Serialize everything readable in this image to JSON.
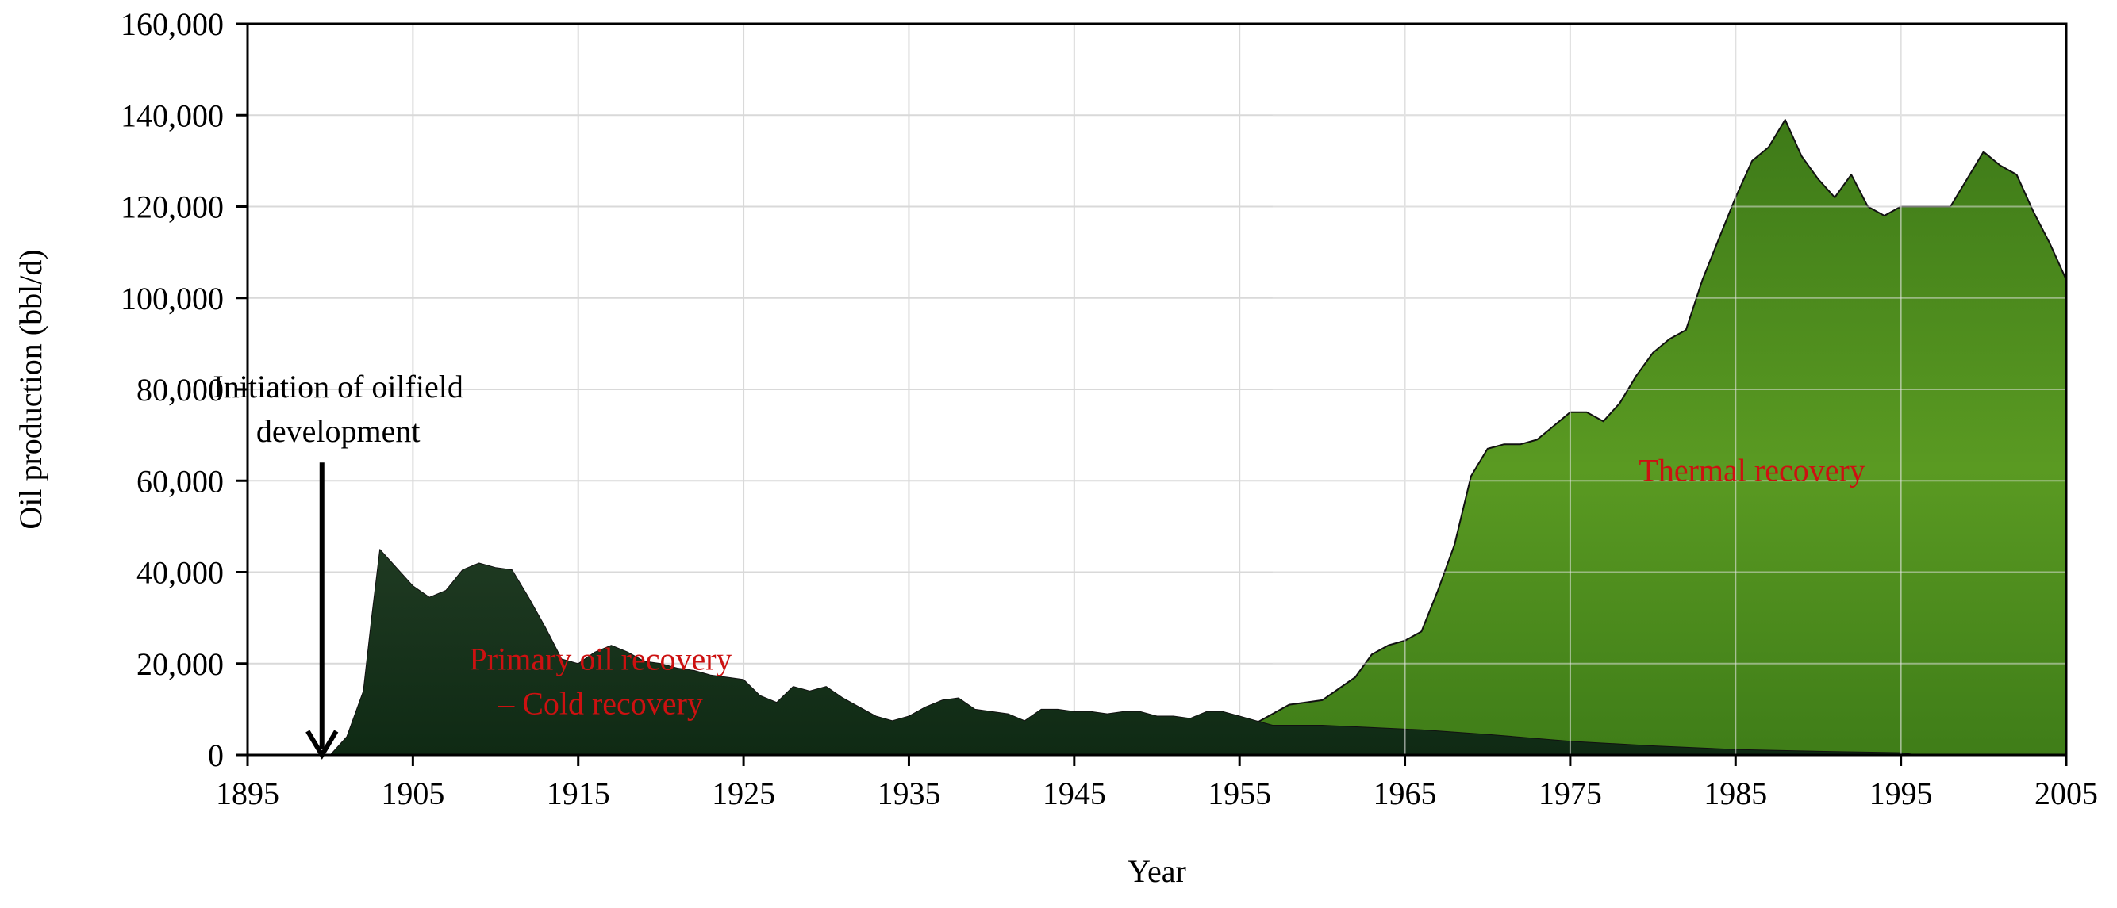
{
  "chart_data": {
    "type": "area",
    "title": "",
    "xlabel": "Year",
    "ylabel": "Oil production (bbl/d)",
    "xlim": [
      1895,
      2005
    ],
    "ylim": [
      0,
      160000
    ],
    "x_ticks": [
      1895,
      1905,
      1915,
      1925,
      1935,
      1945,
      1955,
      1965,
      1975,
      1985,
      1995,
      2005
    ],
    "x_tick_labels": [
      "1895",
      "1905",
      "1915",
      "1925",
      "1935",
      "1945",
      "1955",
      "1965",
      "1975",
      "1985",
      "1995",
      "2005"
    ],
    "y_ticks": [
      0,
      20000,
      40000,
      60000,
      80000,
      100000,
      120000,
      140000,
      160000
    ],
    "y_tick_labels": [
      "0",
      "20,000",
      "40,000",
      "60,000",
      "80,000",
      "100,000",
      "120,000",
      "140,000",
      "160,000"
    ],
    "grid": true,
    "series": [
      {
        "name": "Primary oil recovery – Cold recovery",
        "color": "#13301a",
        "points": [
          [
            1900,
            0
          ],
          [
            1901,
            4000
          ],
          [
            1902,
            14000
          ],
          [
            1902.5,
            30000
          ],
          [
            1903,
            45000
          ],
          [
            1904,
            41000
          ],
          [
            1905,
            37000
          ],
          [
            1906,
            34500
          ],
          [
            1907,
            36000
          ],
          [
            1908,
            40500
          ],
          [
            1909,
            42000
          ],
          [
            1910,
            41000
          ],
          [
            1911,
            40500
          ],
          [
            1912,
            34500
          ],
          [
            1913,
            28000
          ],
          [
            1914,
            21000
          ],
          [
            1915,
            20000
          ],
          [
            1916,
            22500
          ],
          [
            1917,
            24000
          ],
          [
            1918,
            22500
          ],
          [
            1919,
            20500
          ],
          [
            1920,
            20000
          ],
          [
            1921,
            19000
          ],
          [
            1922,
            18500
          ],
          [
            1923,
            17500
          ],
          [
            1924,
            17000
          ],
          [
            1925,
            16500
          ],
          [
            1926,
            13000
          ],
          [
            1927,
            11500
          ],
          [
            1928,
            15000
          ],
          [
            1929,
            14000
          ],
          [
            1930,
            15000
          ],
          [
            1931,
            12500
          ],
          [
            1932,
            10500
          ],
          [
            1933,
            8500
          ],
          [
            1934,
            7500
          ],
          [
            1935,
            8500
          ],
          [
            1936,
            10500
          ],
          [
            1937,
            12000
          ],
          [
            1938,
            12500
          ],
          [
            1939,
            10000
          ],
          [
            1940,
            9500
          ],
          [
            1941,
            9000
          ],
          [
            1942,
            7500
          ],
          [
            1943,
            10000
          ],
          [
            1944,
            10000
          ],
          [
            1945,
            9500
          ],
          [
            1946,
            9500
          ],
          [
            1947,
            9000
          ],
          [
            1948,
            9500
          ],
          [
            1949,
            9500
          ],
          [
            1950,
            8500
          ],
          [
            1951,
            8500
          ],
          [
            1952,
            8000
          ],
          [
            1953,
            9500
          ],
          [
            1954,
            9500
          ],
          [
            1955,
            8500
          ],
          [
            1956,
            7500
          ],
          [
            1957,
            6500
          ],
          [
            1960,
            6500
          ],
          [
            1963,
            6000
          ],
          [
            1966,
            5500
          ],
          [
            1970,
            4500
          ],
          [
            1975,
            3000
          ],
          [
            1980,
            2000
          ],
          [
            1985,
            1200
          ],
          [
            1990,
            800
          ],
          [
            1995,
            500
          ],
          [
            1996,
            0
          ]
        ]
      },
      {
        "name": "Thermal recovery",
        "color": "#4e8a1c",
        "points": [
          [
            1956,
            7000
          ],
          [
            1958,
            11000
          ],
          [
            1960,
            12000
          ],
          [
            1962,
            17000
          ],
          [
            1963,
            22000
          ],
          [
            1964,
            24000
          ],
          [
            1965,
            25000
          ],
          [
            1966,
            27000
          ],
          [
            1967,
            36000
          ],
          [
            1968,
            46000
          ],
          [
            1969,
            61000
          ],
          [
            1970,
            67000
          ],
          [
            1971,
            68000
          ],
          [
            1972,
            68000
          ],
          [
            1973,
            69000
          ],
          [
            1974,
            72000
          ],
          [
            1975,
            75000
          ],
          [
            1976,
            75000
          ],
          [
            1977,
            73000
          ],
          [
            1978,
            77000
          ],
          [
            1979,
            83000
          ],
          [
            1980,
            88000
          ],
          [
            1981,
            91000
          ],
          [
            1982,
            93000
          ],
          [
            1983,
            104000
          ],
          [
            1984,
            113000
          ],
          [
            1985,
            122000
          ],
          [
            1986,
            130000
          ],
          [
            1987,
            133000
          ],
          [
            1988,
            139000
          ],
          [
            1989,
            131000
          ],
          [
            1990,
            126000
          ],
          [
            1991,
            122000
          ],
          [
            1992,
            127000
          ],
          [
            1993,
            120000
          ],
          [
            1994,
            118000
          ],
          [
            1995,
            120000
          ],
          [
            1998,
            120000
          ],
          [
            1999,
            126000
          ],
          [
            2000,
            132000
          ],
          [
            2001,
            129000
          ],
          [
            2002,
            127000
          ],
          [
            2003,
            119000
          ],
          [
            2004,
            112000
          ],
          [
            2005,
            104000
          ]
        ]
      }
    ],
    "annotations": [
      {
        "text_lines": [
          "Initiation of oilfield",
          "development"
        ],
        "x": 1900,
        "y": 80000,
        "arrow_x": 1899.5,
        "arrow_from": 64000,
        "arrow_to": 0
      },
      {
        "text_lines": [
          "Primary oil recovery",
          "– Cold recovery"
        ],
        "x": 1913,
        "y": 10000,
        "color": "#cc1111"
      },
      {
        "text_lines": [
          "Thermal recovery"
        ],
        "x": 1986,
        "y": 60000,
        "color": "#cc1111"
      }
    ]
  }
}
